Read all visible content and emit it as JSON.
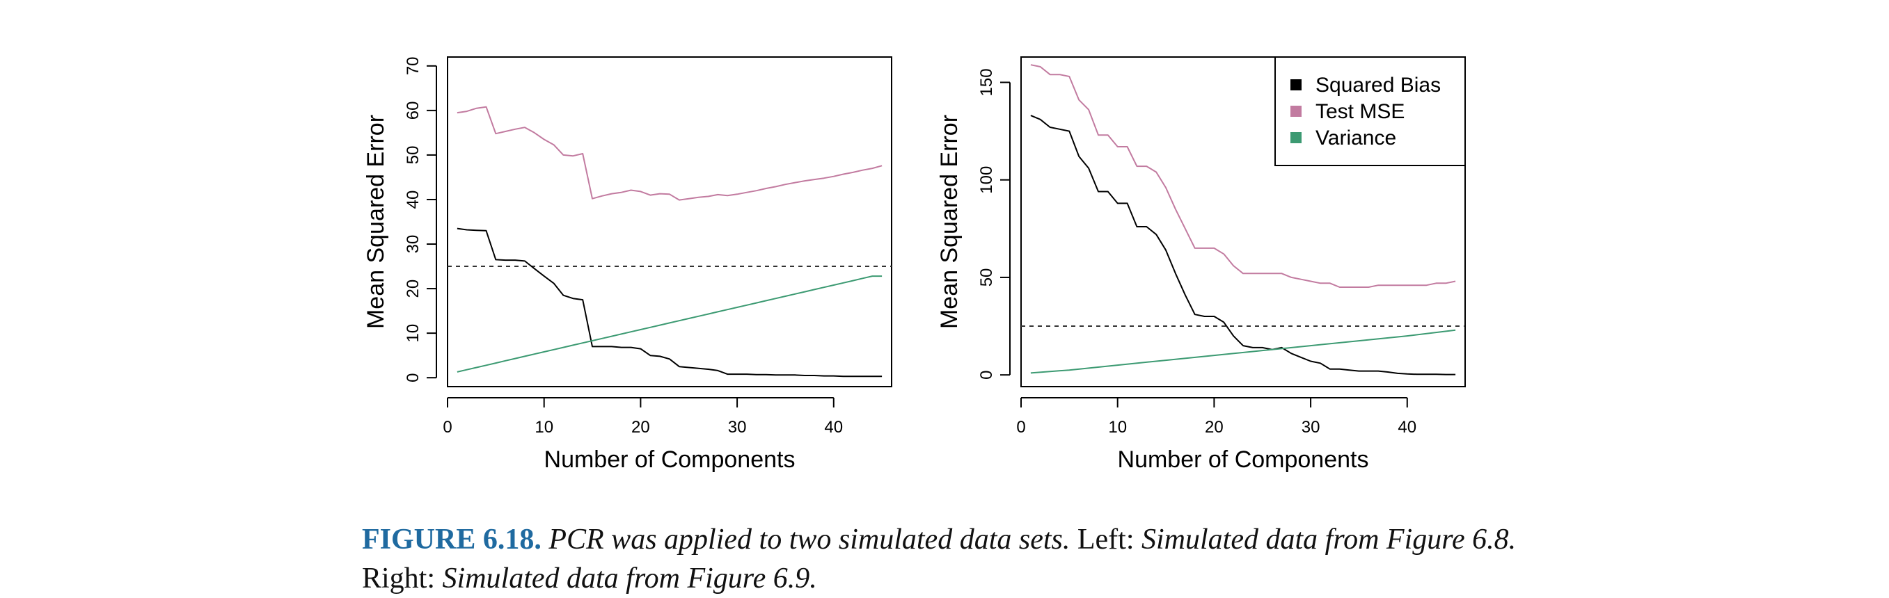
{
  "colors": {
    "squared_bias": "#000000",
    "test_mse": "#c27ba0",
    "variance": "#3c9a72",
    "caption_label": "#1f6aa0"
  },
  "chart_data": [
    {
      "type": "line",
      "xlabel": "Number of Components",
      "ylabel": "Mean Squared Error",
      "xlim": [
        0,
        46
      ],
      "ylim": [
        -2,
        72
      ],
      "xticks": [
        0,
        10,
        20,
        30,
        40
      ],
      "yticks": [
        0,
        10,
        20,
        30,
        40,
        50,
        60,
        70
      ],
      "hline": 25,
      "grid": false,
      "series": [
        {
          "name": "Squared Bias",
          "color": "#000000",
          "x": [
            1,
            2,
            3,
            4,
            5,
            6,
            7,
            8,
            9,
            10,
            11,
            12,
            13,
            14,
            15,
            16,
            17,
            18,
            19,
            20,
            21,
            22,
            23,
            24,
            25,
            26,
            27,
            28,
            29,
            30,
            31,
            32,
            33,
            34,
            35,
            36,
            37,
            38,
            39,
            40,
            41,
            42,
            43,
            44,
            45
          ],
          "y": [
            33.5,
            33.2,
            33.1,
            33,
            26.5,
            26.4,
            26.4,
            26.2,
            24.5,
            22.8,
            21.2,
            18.5,
            17.8,
            17.5,
            7,
            7,
            7,
            6.8,
            6.8,
            6.5,
            5,
            4.8,
            4.2,
            2.5,
            2.3,
            2.1,
            1.9,
            1.6,
            0.8,
            0.8,
            0.8,
            0.7,
            0.7,
            0.6,
            0.6,
            0.6,
            0.5,
            0.5,
            0.4,
            0.4,
            0.3,
            0.3,
            0.3,
            0.3,
            0.3
          ]
        },
        {
          "name": "Test MSE",
          "color": "#c27ba0",
          "x": [
            1,
            2,
            3,
            4,
            5,
            6,
            7,
            8,
            9,
            10,
            11,
            12,
            13,
            14,
            15,
            16,
            17,
            18,
            19,
            20,
            21,
            22,
            23,
            24,
            25,
            26,
            27,
            28,
            29,
            30,
            31,
            32,
            33,
            34,
            35,
            36,
            37,
            38,
            39,
            40,
            41,
            42,
            43,
            44,
            45
          ],
          "y": [
            59.5,
            59.8,
            60.5,
            60.8,
            54.8,
            55.3,
            55.8,
            56.2,
            55,
            53.5,
            52.3,
            50,
            49.8,
            50.3,
            40.2,
            40.8,
            41.3,
            41.6,
            42.1,
            41.8,
            41,
            41.3,
            41.2,
            39.9,
            40.2,
            40.5,
            40.7,
            41.1,
            40.9,
            41.2,
            41.6,
            42,
            42.5,
            42.9,
            43.4,
            43.8,
            44.2,
            44.5,
            44.8,
            45.2,
            45.7,
            46.1,
            46.6,
            47,
            47.6
          ]
        },
        {
          "name": "Variance",
          "color": "#3c9a72",
          "x": [
            1,
            2,
            3,
            4,
            5,
            6,
            7,
            8,
            9,
            10,
            11,
            12,
            13,
            14,
            15,
            16,
            17,
            18,
            19,
            20,
            21,
            22,
            23,
            24,
            25,
            26,
            27,
            28,
            29,
            30,
            31,
            32,
            33,
            34,
            35,
            36,
            37,
            38,
            39,
            40,
            41,
            42,
            43,
            44,
            45
          ],
          "y": [
            1.3,
            1.8,
            2.3,
            2.8,
            3.3,
            3.8,
            4.3,
            4.8,
            5.3,
            5.8,
            6.3,
            6.8,
            7.3,
            7.8,
            8.3,
            8.8,
            9.3,
            9.8,
            10.3,
            10.8,
            11.3,
            11.8,
            12.3,
            12.8,
            13.3,
            13.8,
            14.3,
            14.8,
            15.3,
            15.8,
            16.3,
            16.8,
            17.3,
            17.8,
            18.3,
            18.8,
            19.3,
            19.8,
            20.3,
            20.8,
            21.3,
            21.8,
            22.3,
            22.8,
            22.8
          ]
        }
      ]
    },
    {
      "type": "line",
      "xlabel": "Number of Components",
      "ylabel": "Mean Squared Error",
      "xlim": [
        0,
        46
      ],
      "ylim": [
        -6,
        163
      ],
      "xticks": [
        0,
        10,
        20,
        30,
        40
      ],
      "yticks": [
        0,
        50,
        100,
        150
      ],
      "hline": 25,
      "grid": false,
      "legend": {
        "position": "top-right",
        "entries": [
          "Squared Bias",
          "Test MSE",
          "Variance"
        ]
      },
      "series": [
        {
          "name": "Squared Bias",
          "color": "#000000",
          "x": [
            1,
            2,
            3,
            4,
            5,
            6,
            7,
            8,
            9,
            10,
            11,
            12,
            13,
            14,
            15,
            16,
            17,
            18,
            19,
            20,
            21,
            22,
            23,
            24,
            25,
            26,
            27,
            28,
            29,
            30,
            31,
            32,
            33,
            34,
            35,
            36,
            37,
            38,
            39,
            40,
            41,
            42,
            43,
            44,
            45
          ],
          "y": [
            133,
            131,
            127,
            126,
            125,
            112,
            106,
            94,
            94,
            88,
            88,
            76,
            76,
            72,
            64,
            52,
            41,
            31,
            30,
            30,
            27,
            20,
            15,
            14,
            14,
            13,
            14,
            11,
            9,
            7,
            6,
            3,
            3,
            2.5,
            2,
            2,
            2,
            1.5,
            0.8,
            0.5,
            0.3,
            0.3,
            0.3,
            0.2,
            0.2
          ]
        },
        {
          "name": "Test MSE",
          "color": "#c27ba0",
          "x": [
            1,
            2,
            3,
            4,
            5,
            6,
            7,
            8,
            9,
            10,
            11,
            12,
            13,
            14,
            15,
            16,
            17,
            18,
            19,
            20,
            21,
            22,
            23,
            24,
            25,
            26,
            27,
            28,
            29,
            30,
            31,
            32,
            33,
            34,
            35,
            36,
            37,
            38,
            39,
            40,
            41,
            42,
            43,
            44,
            45
          ],
          "y": [
            159,
            158,
            154,
            154,
            153,
            141,
            136,
            123,
            123,
            117,
            117,
            107,
            107,
            104,
            96,
            85,
            75,
            65,
            65,
            65,
            62,
            56,
            52,
            52,
            52,
            52,
            52,
            50,
            49,
            48,
            47,
            47,
            45,
            45,
            45,
            45,
            46,
            46,
            46,
            46,
            46,
            46,
            47,
            47,
            48
          ]
        },
        {
          "name": "Variance",
          "color": "#3c9a72",
          "x": [
            1,
            5,
            10,
            15,
            20,
            25,
            30,
            35,
            40,
            45
          ],
          "y": [
            1,
            2.5,
            5,
            7.5,
            10,
            12.5,
            15,
            17.5,
            20,
            23
          ]
        }
      ]
    }
  ],
  "caption": {
    "label": "FIGURE 6.18.",
    "part1": "PCR was applied to two simulated data sets.",
    "part2": "Left:",
    "part3": "Simulated data from Figure 6.8.",
    "part4": "Right:",
    "part5": "Simulated data from Figure 6.9."
  }
}
